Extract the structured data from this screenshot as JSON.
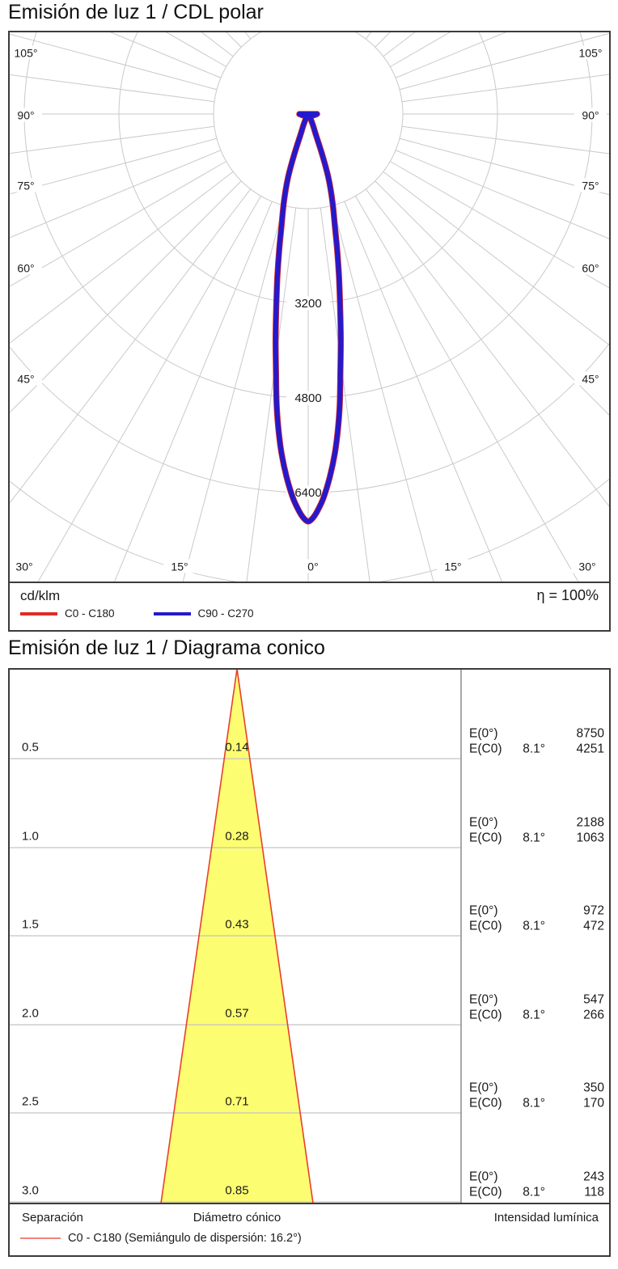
{
  "polar_section": {
    "title": "Emisión de luz 1 / CDL polar",
    "unit_label": "cd/klm",
    "efficiency_label": "η = 100%",
    "legend": [
      {
        "label": "C0 - C180",
        "color": "#e02b27"
      },
      {
        "label": "C90 - C270",
        "color": "#2519cb"
      }
    ],
    "chart_data": {
      "type": "polar",
      "units": "cd/klm",
      "efficiency_percent": 100,
      "ring_step": 1600,
      "rings": [
        1600,
        3200,
        4800,
        6400,
        8000
      ],
      "labeled_rings": [
        "3200",
        "4800",
        "6400"
      ],
      "side_angle_labels": [
        "105°",
        "90°",
        "75°",
        "60°",
        "45°"
      ],
      "bottom_angle_labels": [
        "30°",
        "15°",
        "0°",
        "15°",
        "30°"
      ],
      "spoke_step_deg": 7.5,
      "grid_color": "#c9c9c9",
      "series": [
        {
          "name": "C0 - C180",
          "color": "#e02b27",
          "note": "coincident with C90 - C270 curve",
          "profile_deg_cd": [
            [
              90,
              150
            ],
            [
              75,
              90
            ],
            [
              60,
              50
            ],
            [
              45,
              35
            ],
            [
              33,
              45
            ],
            [
              27,
              90
            ],
            [
              23,
              210
            ],
            [
              20.6,
              350
            ],
            [
              19.1,
              710
            ],
            [
              17.6,
              1130
            ],
            [
              15.4,
              1550
            ],
            [
              13.4,
              1950
            ],
            [
              12,
              2360
            ],
            [
              10.8,
              2770
            ],
            [
              9.4,
              3310
            ],
            [
              8.2,
              3860
            ],
            [
              7.1,
              4400
            ],
            [
              6.2,
              4940
            ],
            [
              5.4,
              5350
            ],
            [
              4.5,
              5750
            ],
            [
              3.4,
              6150
            ],
            [
              2.3,
              6490
            ],
            [
              1.3,
              6720
            ],
            [
              0.6,
              6840
            ],
            [
              0,
              6890
            ]
          ]
        },
        {
          "name": "C90 - C270",
          "color": "#2519cb",
          "profile_deg_cd": [
            [
              90,
              150
            ],
            [
              75,
              90
            ],
            [
              60,
              50
            ],
            [
              45,
              35
            ],
            [
              33,
              45
            ],
            [
              27,
              90
            ],
            [
              23,
              210
            ],
            [
              20.6,
              350
            ],
            [
              19.1,
              710
            ],
            [
              17.6,
              1130
            ],
            [
              15.4,
              1550
            ],
            [
              13.4,
              1950
            ],
            [
              12,
              2360
            ],
            [
              10.8,
              2770
            ],
            [
              9.4,
              3310
            ],
            [
              8.2,
              3860
            ],
            [
              7.1,
              4400
            ],
            [
              6.2,
              4940
            ],
            [
              5.4,
              5350
            ],
            [
              4.5,
              5750
            ],
            [
              3.4,
              6150
            ],
            [
              2.3,
              6490
            ],
            [
              1.3,
              6720
            ],
            [
              0.6,
              6840
            ],
            [
              0,
              6890
            ]
          ]
        }
      ]
    }
  },
  "cone_section": {
    "title": "Emisión de luz 1 / Diagrama conico",
    "footer": {
      "separation": "Separación",
      "diameter": "Diámetro cónico",
      "intensity": "Intensidad lumínica"
    },
    "legend_label": "C0 - C180 (Semiángulo de dispersión: 16.2°)",
    "legend_color": "#f4837d",
    "chart_data": {
      "type": "cone_diagram",
      "beam_half_angle_deg": 8.1,
      "dispersion_semi_angle_deg": 16.2,
      "cone_fill": "#fdfd71",
      "cone_edge": "#e8402a",
      "e_labels": {
        "e0": "E(0°)",
        "ec0": "E(C0)",
        "angle": "8.1°"
      },
      "rows": [
        {
          "separation": "0.5",
          "diameter": "0.14",
          "e0": "8750",
          "ec0": "4251"
        },
        {
          "separation": "1.0",
          "diameter": "0.28",
          "e0": "2188",
          "ec0": "1063"
        },
        {
          "separation": "1.5",
          "diameter": "0.43",
          "e0": "972",
          "ec0": "472"
        },
        {
          "separation": "2.0",
          "diameter": "0.57",
          "e0": "547",
          "ec0": "266"
        },
        {
          "separation": "2.5",
          "diameter": "0.71",
          "e0": "350",
          "ec0": "170"
        },
        {
          "separation": "3.0",
          "diameter": "0.85",
          "e0": "243",
          "ec0": "118"
        }
      ]
    }
  }
}
